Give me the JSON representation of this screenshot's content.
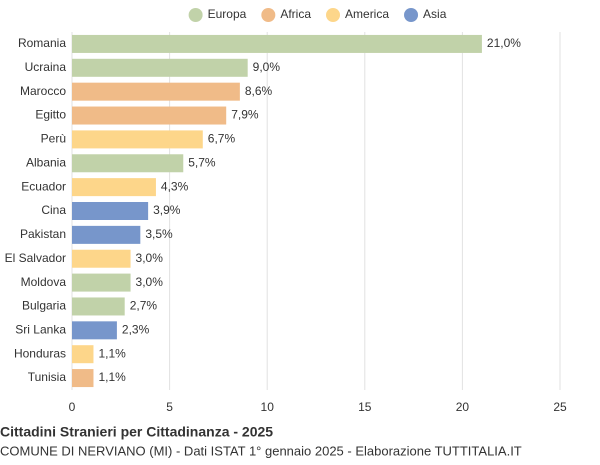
{
  "chart_data": {
    "type": "hbar",
    "title": "Cittadini Stranieri per Cittadinanza - 2025",
    "subtitle": "COMUNE DI NERVIANO (MI) - Dati ISTAT 1° gennaio 2025 - Elaborazione TUTTITALIA.IT",
    "categories": [
      "Romania",
      "Ucraina",
      "Marocco",
      "Egitto",
      "Perù",
      "Albania",
      "Ecuador",
      "Cina",
      "Pakistan",
      "El Salvador",
      "Moldova",
      "Bulgaria",
      "Sri Lanka",
      "Honduras",
      "Tunisia"
    ],
    "series": [
      {
        "name": "Europa",
        "color": "#c1d2a9",
        "values": [
          21.0,
          9.0,
          null,
          null,
          null,
          5.7,
          null,
          null,
          null,
          null,
          3.0,
          2.7,
          null,
          null,
          null
        ],
        "value_labels": [
          "21,0%",
          "9,0%",
          null,
          null,
          null,
          "5,7%",
          null,
          null,
          null,
          null,
          "3,0%",
          "2,7%",
          null,
          null,
          null
        ]
      },
      {
        "name": "Africa",
        "color": "#f0bb88",
        "values": [
          null,
          null,
          8.6,
          7.9,
          null,
          null,
          null,
          null,
          null,
          null,
          null,
          null,
          null,
          null,
          1.1
        ],
        "value_labels": [
          null,
          null,
          "8,6%",
          "7,9%",
          null,
          null,
          null,
          null,
          null,
          null,
          null,
          null,
          null,
          null,
          "1,1%"
        ]
      },
      {
        "name": "America",
        "color": "#fdd68a",
        "values": [
          null,
          null,
          null,
          null,
          6.7,
          null,
          4.3,
          null,
          null,
          3.0,
          null,
          null,
          null,
          1.1,
          null
        ],
        "value_labels": [
          null,
          null,
          null,
          null,
          "6,7%",
          null,
          "4,3%",
          null,
          null,
          "3,0%",
          null,
          null,
          null,
          "1,1%",
          null
        ]
      },
      {
        "name": "Asia",
        "color": "#7796cb",
        "values": [
          null,
          null,
          null,
          null,
          null,
          null,
          null,
          3.9,
          3.5,
          null,
          null,
          null,
          2.3,
          null,
          null
        ],
        "value_labels": [
          null,
          null,
          null,
          null,
          null,
          null,
          null,
          "3,9%",
          "3,5%",
          null,
          null,
          null,
          "2,3%",
          null,
          null
        ]
      }
    ],
    "xlim": [
      0,
      25
    ],
    "xticks": [
      0,
      5,
      10,
      15,
      20,
      25
    ],
    "grid": true
  }
}
